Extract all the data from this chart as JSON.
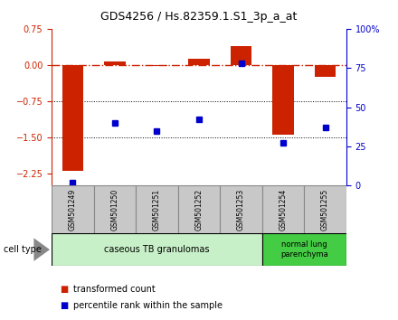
{
  "title": "GDS4256 / Hs.82359.1.S1_3p_a_at",
  "samples": [
    "GSM501249",
    "GSM501250",
    "GSM501251",
    "GSM501252",
    "GSM501253",
    "GSM501254",
    "GSM501255"
  ],
  "red_values": [
    -2.2,
    0.07,
    -0.02,
    0.12,
    0.4,
    -1.45,
    -0.25
  ],
  "blue_values": [
    2,
    40,
    35,
    42,
    78,
    27,
    37
  ],
  "ylim_left": [
    -2.5,
    0.75
  ],
  "ylim_right": [
    0,
    100
  ],
  "yticks_left": [
    0.75,
    0,
    -0.75,
    -1.5,
    -2.25
  ],
  "yticks_right": [
    100,
    75,
    50,
    25,
    0
  ],
  "ytick_labels_right": [
    "100%",
    "75",
    "50",
    "25",
    "0"
  ],
  "hlines_dotted": [
    -0.75,
    -1.5
  ],
  "red_color": "#cc2200",
  "blue_color": "#0000cc",
  "bar_width": 0.5,
  "group1_label": "caseous TB granulomas",
  "group2_label": "normal lung\nparenchyma",
  "group1_bg": "#c8f0c8",
  "group2_bg": "#44cc44",
  "sample_box_bg": "#c8c8c8",
  "sample_box_edge": "#888888",
  "cell_type_label": "cell type",
  "legend_red": "transformed count",
  "legend_blue": "percentile rank within the sample",
  "title_fontsize": 9,
  "tick_fontsize": 7,
  "sample_fontsize": 5.5,
  "group_fontsize": 7,
  "legend_fontsize": 7
}
